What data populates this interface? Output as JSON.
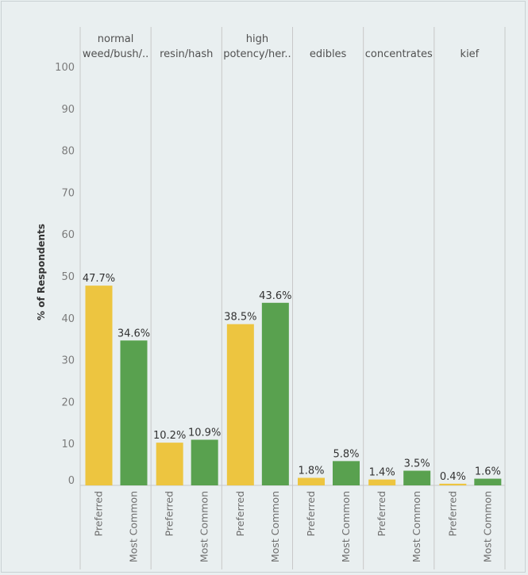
{
  "chart_data": {
    "type": "bar",
    "ylabel": "% of Respondents",
    "ylim": [
      0,
      100
    ],
    "yticks": [
      0,
      10,
      20,
      30,
      40,
      50,
      60,
      70,
      80,
      90,
      100
    ],
    "facets": [
      {
        "label_lines": [
          "normal",
          "weed/bush/.."
        ],
        "values": [
          47.7,
          34.6
        ],
        "labels": [
          "47.7%",
          "34.6%"
        ]
      },
      {
        "label_lines": [
          "resin/hash"
        ],
        "values": [
          10.2,
          10.9
        ],
        "labels": [
          "10.2%",
          "10.9%"
        ]
      },
      {
        "label_lines": [
          "high",
          "potency/her.."
        ],
        "values": [
          38.5,
          43.6
        ],
        "labels": [
          "38.5%",
          "43.6%"
        ]
      },
      {
        "label_lines": [
          "edibles"
        ],
        "values": [
          1.8,
          5.8
        ],
        "labels": [
          "1.8%",
          "5.8%"
        ]
      },
      {
        "label_lines": [
          "concentrates"
        ],
        "values": [
          1.4,
          3.5
        ],
        "labels": [
          "1.4%",
          "3.5%"
        ]
      },
      {
        "label_lines": [
          "kief"
        ],
        "values": [
          0.4,
          1.6
        ],
        "labels": [
          "0.4%",
          "1.6%"
        ]
      }
    ],
    "categories": [
      "Preferred",
      "Most Common"
    ],
    "series_colors": [
      "#edc540",
      "#59a14f"
    ],
    "grid": false
  }
}
